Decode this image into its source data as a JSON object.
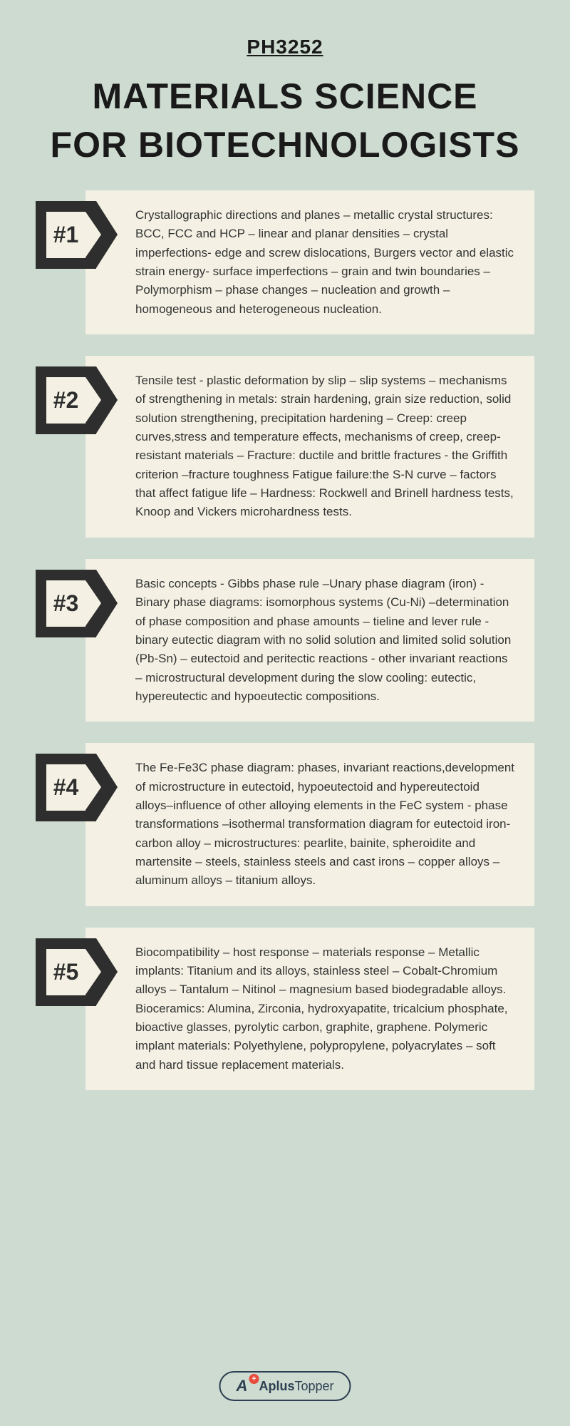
{
  "course_code": "PH3252",
  "title_line1": "MATERIALS SCIENCE",
  "title_line2": "FOR BIOTECHNOLOGISTS",
  "items": [
    {
      "num": "#1",
      "text": "Crystallographic directions and planes – metallic crystal structures: BCC, FCC and HCP – linear and planar densities – crystal imperfections- edge and screw dislocations, Burgers vector and elastic strain energy- surface imperfections – grain and twin boundaries – Polymorphism – phase changes – nucleation and growth – homogeneous and heterogeneous nucleation."
    },
    {
      "num": "#2",
      "text": "Tensile test - plastic deformation by slip – slip systems – mechanisms of strengthening in metals: strain hardening, grain size reduction, solid solution strengthening, precipitation hardening – Creep: creep curves,stress and temperature effects, mechanisms of creep, creep-resistant materials – Fracture: ductile and brittle fractures - the Griffith criterion –fracture toughness Fatigue failure:the S-N curve – factors that affect fatigue life – Hardness: Rockwell and Brinell hardness tests, Knoop and Vickers microhardness tests."
    },
    {
      "num": "#3",
      "text": "Basic concepts - Gibbs phase rule –Unary phase diagram (iron) - Binary phase diagrams: isomorphous systems (Cu-Ni) –determination of phase composition and phase amounts – tieline and lever rule - binary eutectic diagram with no solid solution and limited solid solution (Pb-Sn) – eutectoid and peritectic reactions - other invariant reactions – microstructural development during the slow cooling: eutectic, hypereutectic and hypoeutectic compositions."
    },
    {
      "num": "#4",
      "text": "The Fe-Fe3C phase diagram: phases, invariant reactions,development of microstructure in eutectoid, hypoeutectoid and hypereutectoid alloys–influence of other alloying elements in the FeC system - phase transformations –isothermal transformation diagram for eutectoid iron-carbon alloy – microstructures: pearlite, bainite, spheroidite and martensite – steels, stainless steels and cast irons – copper alloys – aluminum alloys – titanium alloys."
    },
    {
      "num": "#5",
      "text": "Biocompatibility – host response – materials response – Metallic implants: Titanium and its alloys, stainless steel – Cobalt-Chromium alloys – Tantalum – Nitinol – magnesium based biodegradable alloys. Bioceramics: Alumina, Zirconia, hydroxyapatite, tricalcium phosphate, bioactive glasses, pyrolytic carbon, graphite, graphene. Polymeric implant materials: Polyethylene, polypropylene, polyacrylates – soft and hard tissue replacement materials."
    }
  ],
  "logo": {
    "brand_prefix": "Aplus",
    "brand_suffix": "Topper",
    "mark_letter": "A",
    "mark_plus": "+"
  },
  "colors": {
    "background": "#cddbd1",
    "card": "#f4f1e4",
    "badge": "#2d2e2d",
    "text": "#333333",
    "logo_border": "#2d3e50",
    "logo_accent": "#e74c3c"
  }
}
